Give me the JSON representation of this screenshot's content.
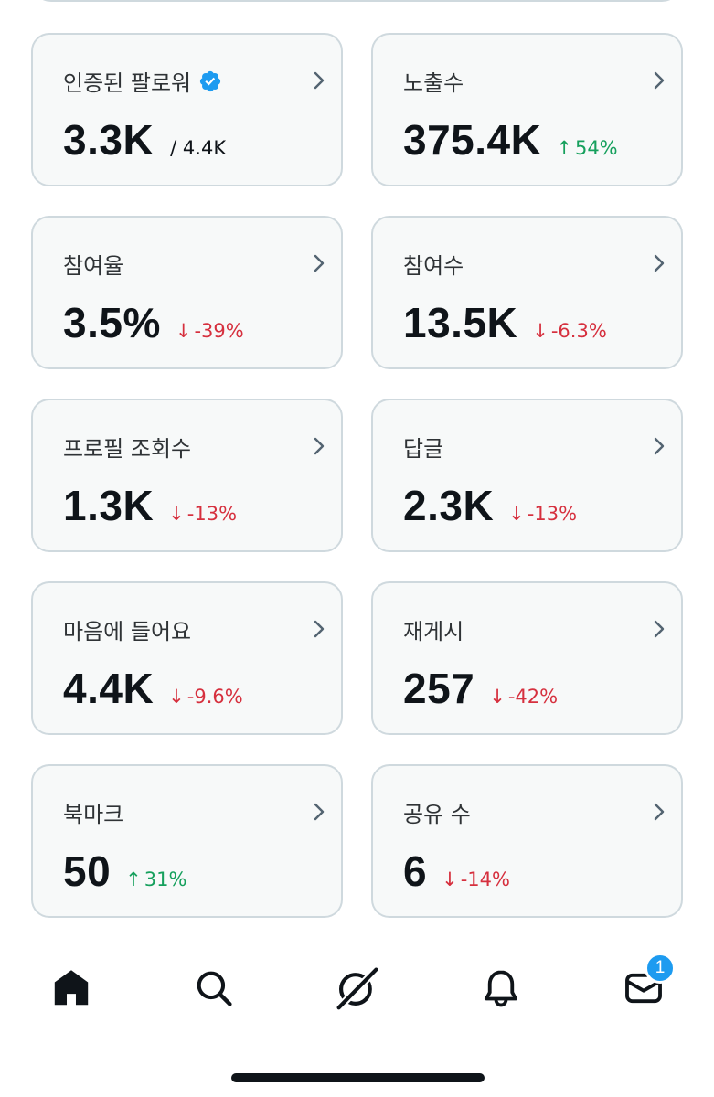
{
  "metrics": [
    {
      "label": "인증된 팔로워",
      "value": "3.3K",
      "total": "/ 4.4K",
      "verified": true
    },
    {
      "label": "노출수",
      "value": "375.4K",
      "change": "54%",
      "direction": "up"
    },
    {
      "label": "참여율",
      "value": "3.5%",
      "change": "-39%",
      "direction": "down"
    },
    {
      "label": "참여수",
      "value": "13.5K",
      "change": "-6.3%",
      "direction": "down"
    },
    {
      "label": "프로필 조회수",
      "value": "1.3K",
      "change": "-13%",
      "direction": "down"
    },
    {
      "label": "답글",
      "value": "2.3K",
      "change": "-13%",
      "direction": "down"
    },
    {
      "label": "마음에 들어요",
      "value": "4.4K",
      "change": "-9.6%",
      "direction": "down"
    },
    {
      "label": "재게시",
      "value": "257",
      "change": "-42%",
      "direction": "down"
    },
    {
      "label": "북마크",
      "value": "50",
      "change": "31%",
      "direction": "up"
    },
    {
      "label": "공유 수",
      "value": "6",
      "change": "-14%",
      "direction": "down"
    }
  ],
  "arrows": {
    "up": "↑",
    "down": "↓"
  },
  "colors": {
    "up": "#16a05d",
    "down": "#d6303e",
    "verified": "#1d9bf0",
    "badge": "#1d9bf0"
  },
  "tabbar": {
    "tabs": [
      {
        "icon": "home-icon"
      },
      {
        "icon": "search-icon"
      },
      {
        "icon": "grok-icon"
      },
      {
        "icon": "bell-icon"
      },
      {
        "icon": "mail-icon"
      }
    ],
    "messages_badge": "1"
  }
}
